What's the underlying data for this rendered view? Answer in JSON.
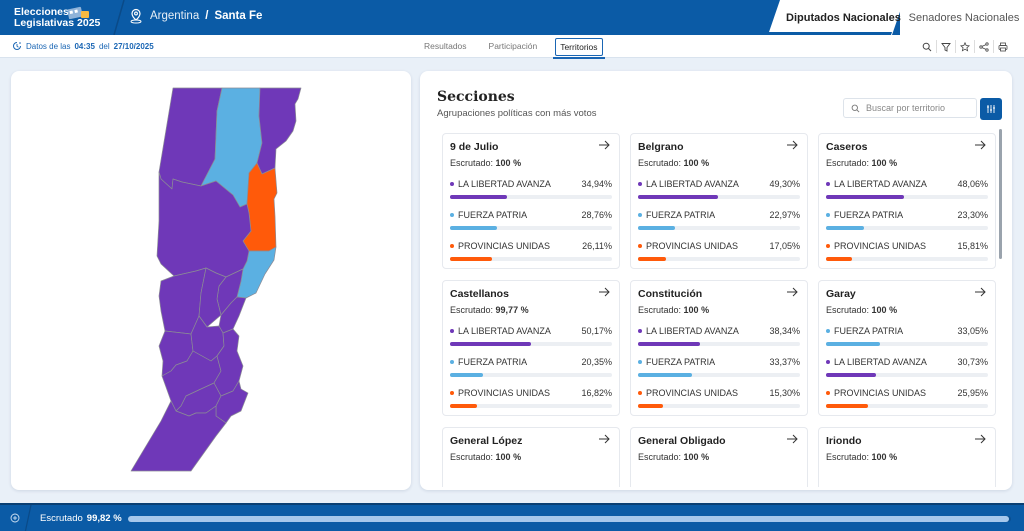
{
  "app": {
    "logo_line1": "Elecciones",
    "logo_line2": "Legislativas 2025",
    "location_icon": "map-pin-icon",
    "breadcrumb_country": "Argentina",
    "breadcrumb_separator": "/",
    "breadcrumb_province": "Santa Fe",
    "tabs": [
      {
        "label": "Diputados Nacionales",
        "active": true
      },
      {
        "label": "Senadores Nacionales",
        "active": false
      }
    ],
    "brand_color": "#0b5ba6"
  },
  "subbar": {
    "datos_prefix": "Datos de las",
    "datos_time": "04:35",
    "datos_mid": "del",
    "datos_date": "27/10/2025",
    "nav": [
      {
        "label": "Resultados",
        "active": false
      },
      {
        "label": "Participación",
        "active": false
      },
      {
        "label": "Territorios",
        "active": true
      }
    ],
    "tools": [
      "search-icon",
      "filter-icon",
      "star-icon",
      "share-icon",
      "print-icon"
    ]
  },
  "parties": {
    "lla": {
      "name": "LA LIBERTAD AVANZA",
      "color": "#6f38b8"
    },
    "fp": {
      "name": "FUERZA PATRIA",
      "color": "#5bb0e2"
    },
    "pu": {
      "name": "PROVINCIAS UNIDAS",
      "color": "#ff5a0a"
    }
  },
  "secciones": {
    "title": "Secciones",
    "subtitle": "Agrupaciones políticas con más votos",
    "search_placeholder": "Buscar por territorio",
    "search_value": "",
    "escrutado_label": "Escrutado:",
    "cards": [
      {
        "name": "9 de Julio",
        "escrutado": "100 %",
        "rows": [
          {
            "party": "LA LIBERTAD AVANZA",
            "pct_label": "34,94%",
            "pct": 34.94,
            "color": "#6f38b8"
          },
          {
            "party": "FUERZA PATRIA",
            "pct_label": "28,76%",
            "pct": 28.76,
            "color": "#5bb0e2"
          },
          {
            "party": "PROVINCIAS UNIDAS",
            "pct_label": "26,11%",
            "pct": 26.11,
            "color": "#ff5a0a"
          }
        ]
      },
      {
        "name": "Belgrano",
        "escrutado": "100 %",
        "rows": [
          {
            "party": "LA LIBERTAD AVANZA",
            "pct_label": "49,30%",
            "pct": 49.3,
            "color": "#6f38b8"
          },
          {
            "party": "FUERZA PATRIA",
            "pct_label": "22,97%",
            "pct": 22.97,
            "color": "#5bb0e2"
          },
          {
            "party": "PROVINCIAS UNIDAS",
            "pct_label": "17,05%",
            "pct": 17.05,
            "color": "#ff5a0a"
          }
        ]
      },
      {
        "name": "Caseros",
        "escrutado": "100 %",
        "rows": [
          {
            "party": "LA LIBERTAD AVANZA",
            "pct_label": "48,06%",
            "pct": 48.06,
            "color": "#6f38b8"
          },
          {
            "party": "FUERZA PATRIA",
            "pct_label": "23,30%",
            "pct": 23.3,
            "color": "#5bb0e2"
          },
          {
            "party": "PROVINCIAS UNIDAS",
            "pct_label": "15,81%",
            "pct": 15.81,
            "color": "#ff5a0a"
          }
        ]
      },
      {
        "name": "Castellanos",
        "escrutado": "99,77 %",
        "rows": [
          {
            "party": "LA LIBERTAD AVANZA",
            "pct_label": "50,17%",
            "pct": 50.17,
            "color": "#6f38b8"
          },
          {
            "party": "FUERZA PATRIA",
            "pct_label": "20,35%",
            "pct": 20.35,
            "color": "#5bb0e2"
          },
          {
            "party": "PROVINCIAS UNIDAS",
            "pct_label": "16,82%",
            "pct": 16.82,
            "color": "#ff5a0a"
          }
        ]
      },
      {
        "name": "Constitución",
        "escrutado": "100 %",
        "rows": [
          {
            "party": "LA LIBERTAD AVANZA",
            "pct_label": "38,34%",
            "pct": 38.34,
            "color": "#6f38b8"
          },
          {
            "party": "FUERZA PATRIA",
            "pct_label": "33,37%",
            "pct": 33.37,
            "color": "#5bb0e2"
          },
          {
            "party": "PROVINCIAS UNIDAS",
            "pct_label": "15,30%",
            "pct": 15.3,
            "color": "#ff5a0a"
          }
        ]
      },
      {
        "name": "Garay",
        "escrutado": "100 %",
        "rows": [
          {
            "party": "FUERZA PATRIA",
            "pct_label": "33,05%",
            "pct": 33.05,
            "color": "#5bb0e2"
          },
          {
            "party": "LA LIBERTAD AVANZA",
            "pct_label": "30,73%",
            "pct": 30.73,
            "color": "#6f38b8"
          },
          {
            "party": "PROVINCIAS UNIDAS",
            "pct_label": "25,95%",
            "pct": 25.95,
            "color": "#ff5a0a"
          }
        ]
      },
      {
        "name": "General López",
        "escrutado": "100 %",
        "rows": []
      },
      {
        "name": "General Obligado",
        "escrutado": "100 %",
        "rows": []
      },
      {
        "name": "Iriondo",
        "escrutado": "100 %",
        "rows": []
      }
    ]
  },
  "map": {
    "winner_colors": {
      "LA LIBERTAD AVANZA": "#6f38b8",
      "FUERZA PATRIA": "#5bb0e2",
      "PROVINCIAS UNIDAS": "#ff5a0a"
    }
  },
  "footer": {
    "label": "Escrutado",
    "value": "99,82 %",
    "progress_pct": 99.82
  }
}
